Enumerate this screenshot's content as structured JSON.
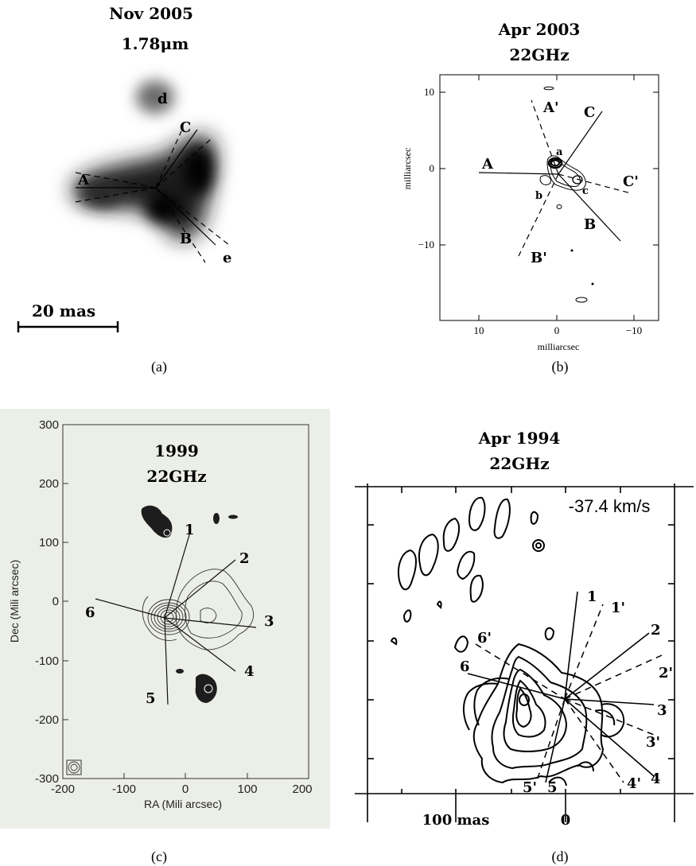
{
  "panel_a": {
    "title": "Nov 2005",
    "wavelength": "1.78μm",
    "labels": {
      "A": "A",
      "B": "B",
      "C": "C",
      "d": "d",
      "e": "e"
    },
    "scalebar": "20 mas",
    "caption": "(a)"
  },
  "panel_b": {
    "title": "Apr 2003",
    "frequency": "22GHz",
    "labels": {
      "A": "A",
      "A1": "A'",
      "B": "B",
      "B1": "B'",
      "C": "C",
      "C1": "C'",
      "a": "a",
      "b": "b",
      "c": "c"
    },
    "ylabel": "milliarcsec",
    "xlabel": "milliarcsec",
    "yticks": [
      "10",
      "0",
      "−10"
    ],
    "xticks": [
      "10",
      "0",
      "−10"
    ],
    "caption": "(b)"
  },
  "panel_c": {
    "title": "1999",
    "frequency": "22GHz",
    "labels": [
      "1",
      "2",
      "3",
      "4",
      "5",
      "6"
    ],
    "ylabel": "Dec (Mili arcsec)",
    "xlabel": "RA (Mili arcsec)",
    "yticks": [
      "300",
      "200",
      "100",
      "0",
      "-100",
      "-200",
      "-300"
    ],
    "xticks": [
      "-200",
      "-100",
      "0",
      "100",
      "200"
    ],
    "caption": "(c)"
  },
  "panel_d": {
    "title": "Apr 1994",
    "frequency": "22GHz",
    "velocity": "-37.4 km/s",
    "labels": [
      "1",
      "1'",
      "2",
      "2'",
      "3",
      "3'",
      "4",
      "4'",
      "5",
      "5'",
      "6",
      "6'"
    ],
    "scale_label": "100 mas",
    "zero_label": "0",
    "caption": "(d)"
  }
}
